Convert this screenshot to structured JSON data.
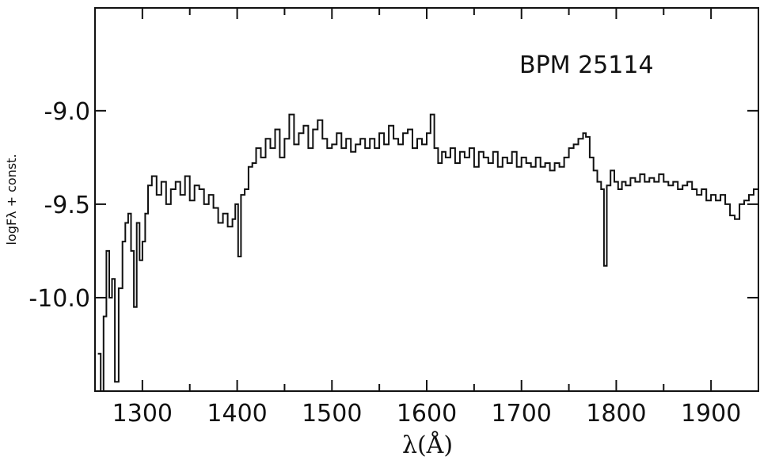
{
  "chart_data": {
    "type": "line",
    "title": "",
    "annotation": "BPM 25114",
    "xlabel": "λ(Å)",
    "ylabel": "logFλ + const.",
    "xlim": [
      1250,
      1950
    ],
    "ylim": [
      -10.5,
      -8.45
    ],
    "x_ticks": [
      1300,
      1400,
      1500,
      1600,
      1700,
      1800,
      1900
    ],
    "x_tick_labels": [
      "1300",
      "1400",
      "1500",
      "1600",
      "1700",
      "1800",
      "1900"
    ],
    "y_ticks": [
      -9.0,
      -9.5,
      -10.0
    ],
    "y_tick_labels": [
      "-9.0",
      "-9.5",
      "-10.0"
    ],
    "grid": false,
    "legend": "none",
    "series": [
      {
        "line_color": "#111111",
        "points": [
          [
            1253,
            -10.3
          ],
          [
            1256,
            -10.5
          ],
          [
            1259,
            -10.1
          ],
          [
            1262,
            -9.75
          ],
          [
            1265,
            -10.0
          ],
          [
            1268,
            -9.9
          ],
          [
            1271,
            -10.45
          ],
          [
            1275,
            -9.95
          ],
          [
            1279,
            -9.7
          ],
          [
            1282,
            -9.6
          ],
          [
            1285,
            -9.55
          ],
          [
            1288,
            -9.75
          ],
          [
            1291,
            -10.05
          ],
          [
            1294,
            -9.6
          ],
          [
            1297,
            -9.8
          ],
          [
            1300,
            -9.7
          ],
          [
            1303,
            -9.55
          ],
          [
            1306,
            -9.4
          ],
          [
            1310,
            -9.35
          ],
          [
            1315,
            -9.45
          ],
          [
            1320,
            -9.38
          ],
          [
            1325,
            -9.5
          ],
          [
            1330,
            -9.42
          ],
          [
            1335,
            -9.38
          ],
          [
            1340,
            -9.45
          ],
          [
            1345,
            -9.35
          ],
          [
            1350,
            -9.48
          ],
          [
            1355,
            -9.4
          ],
          [
            1360,
            -9.42
          ],
          [
            1365,
            -9.5
          ],
          [
            1370,
            -9.45
          ],
          [
            1375,
            -9.52
          ],
          [
            1380,
            -9.6
          ],
          [
            1385,
            -9.55
          ],
          [
            1390,
            -9.62
          ],
          [
            1395,
            -9.58
          ],
          [
            1398,
            -9.5
          ],
          [
            1401,
            -9.78
          ],
          [
            1404,
            -9.45
          ],
          [
            1408,
            -9.42
          ],
          [
            1412,
            -9.3
          ],
          [
            1416,
            -9.28
          ],
          [
            1420,
            -9.2
          ],
          [
            1425,
            -9.25
          ],
          [
            1430,
            -9.15
          ],
          [
            1435,
            -9.2
          ],
          [
            1440,
            -9.1
          ],
          [
            1445,
            -9.25
          ],
          [
            1450,
            -9.15
          ],
          [
            1455,
            -9.02
          ],
          [
            1460,
            -9.18
          ],
          [
            1465,
            -9.12
          ],
          [
            1470,
            -9.08
          ],
          [
            1475,
            -9.2
          ],
          [
            1480,
            -9.1
          ],
          [
            1485,
            -9.05
          ],
          [
            1490,
            -9.15
          ],
          [
            1495,
            -9.2
          ],
          [
            1500,
            -9.18
          ],
          [
            1505,
            -9.12
          ],
          [
            1510,
            -9.2
          ],
          [
            1515,
            -9.15
          ],
          [
            1520,
            -9.22
          ],
          [
            1525,
            -9.18
          ],
          [
            1530,
            -9.15
          ],
          [
            1535,
            -9.2
          ],
          [
            1540,
            -9.15
          ],
          [
            1545,
            -9.2
          ],
          [
            1550,
            -9.12
          ],
          [
            1555,
            -9.18
          ],
          [
            1560,
            -9.08
          ],
          [
            1565,
            -9.15
          ],
          [
            1570,
            -9.18
          ],
          [
            1575,
            -9.12
          ],
          [
            1580,
            -9.1
          ],
          [
            1585,
            -9.2
          ],
          [
            1590,
            -9.15
          ],
          [
            1595,
            -9.18
          ],
          [
            1600,
            -9.12
          ],
          [
            1604,
            -9.02
          ],
          [
            1608,
            -9.2
          ],
          [
            1612,
            -9.28
          ],
          [
            1616,
            -9.22
          ],
          [
            1620,
            -9.25
          ],
          [
            1625,
            -9.2
          ],
          [
            1630,
            -9.28
          ],
          [
            1635,
            -9.22
          ],
          [
            1640,
            -9.25
          ],
          [
            1645,
            -9.2
          ],
          [
            1650,
            -9.3
          ],
          [
            1655,
            -9.22
          ],
          [
            1660,
            -9.25
          ],
          [
            1665,
            -9.28
          ],
          [
            1670,
            -9.22
          ],
          [
            1675,
            -9.3
          ],
          [
            1680,
            -9.25
          ],
          [
            1685,
            -9.28
          ],
          [
            1690,
            -9.22
          ],
          [
            1695,
            -9.3
          ],
          [
            1700,
            -9.25
          ],
          [
            1705,
            -9.28
          ],
          [
            1710,
            -9.3
          ],
          [
            1715,
            -9.25
          ],
          [
            1720,
            -9.3
          ],
          [
            1725,
            -9.28
          ],
          [
            1730,
            -9.32
          ],
          [
            1735,
            -9.28
          ],
          [
            1740,
            -9.3
          ],
          [
            1745,
            -9.25
          ],
          [
            1750,
            -9.2
          ],
          [
            1755,
            -9.18
          ],
          [
            1760,
            -9.15
          ],
          [
            1765,
            -9.12
          ],
          [
            1768,
            -9.14
          ],
          [
            1772,
            -9.25
          ],
          [
            1776,
            -9.32
          ],
          [
            1780,
            -9.38
          ],
          [
            1784,
            -9.42
          ],
          [
            1787,
            -9.83
          ],
          [
            1790,
            -9.4
          ],
          [
            1794,
            -9.32
          ],
          [
            1798,
            -9.38
          ],
          [
            1802,
            -9.42
          ],
          [
            1806,
            -9.38
          ],
          [
            1810,
            -9.4
          ],
          [
            1815,
            -9.36
          ],
          [
            1820,
            -9.38
          ],
          [
            1825,
            -9.34
          ],
          [
            1830,
            -9.38
          ],
          [
            1835,
            -9.36
          ],
          [
            1840,
            -9.38
          ],
          [
            1845,
            -9.34
          ],
          [
            1850,
            -9.38
          ],
          [
            1855,
            -9.4
          ],
          [
            1860,
            -9.38
          ],
          [
            1865,
            -9.42
          ],
          [
            1870,
            -9.4
          ],
          [
            1875,
            -9.38
          ],
          [
            1880,
            -9.42
          ],
          [
            1885,
            -9.45
          ],
          [
            1890,
            -9.42
          ],
          [
            1895,
            -9.48
          ],
          [
            1900,
            -9.45
          ],
          [
            1905,
            -9.48
          ],
          [
            1910,
            -9.45
          ],
          [
            1915,
            -9.5
          ],
          [
            1920,
            -9.56
          ],
          [
            1925,
            -9.58
          ],
          [
            1930,
            -9.5
          ],
          [
            1935,
            -9.48
          ],
          [
            1940,
            -9.45
          ],
          [
            1945,
            -9.42
          ],
          [
            1950,
            -9.42
          ]
        ]
      }
    ]
  }
}
